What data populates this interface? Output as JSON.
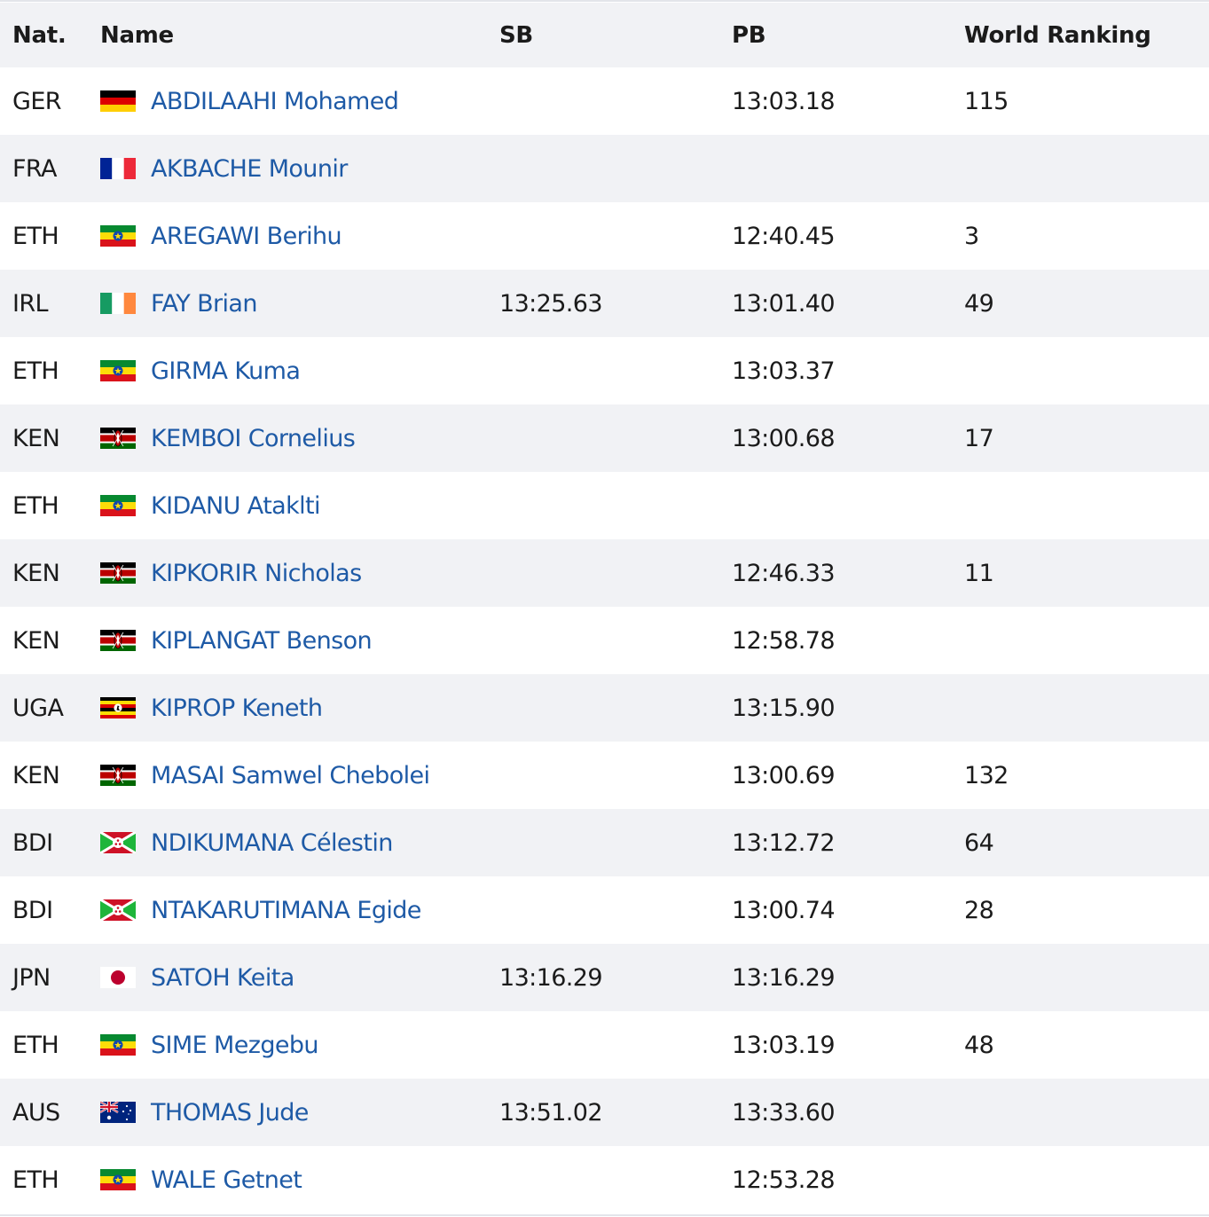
{
  "columns": {
    "nat": "Nat.",
    "name": "Name",
    "sb": "SB",
    "pb": "PB",
    "rank": "World Ranking"
  },
  "rows": [
    {
      "nat": "GER",
      "flag": "germany-flag-icon",
      "name": "ABDILAAHI Mohamed",
      "sb": "",
      "pb": "13:03.18",
      "rank": "115"
    },
    {
      "nat": "FRA",
      "flag": "france-flag-icon",
      "name": "AKBACHE Mounir",
      "sb": "",
      "pb": "",
      "rank": ""
    },
    {
      "nat": "ETH",
      "flag": "ethiopia-flag-icon",
      "name": "AREGAWI Berihu",
      "sb": "",
      "pb": "12:40.45",
      "rank": "3"
    },
    {
      "nat": "IRL",
      "flag": "ireland-flag-icon",
      "name": "FAY Brian",
      "sb": "13:25.63",
      "pb": "13:01.40",
      "rank": "49"
    },
    {
      "nat": "ETH",
      "flag": "ethiopia-flag-icon",
      "name": "GIRMA Kuma",
      "sb": "",
      "pb": "13:03.37",
      "rank": ""
    },
    {
      "nat": "KEN",
      "flag": "kenya-flag-icon",
      "name": "KEMBOI Cornelius",
      "sb": "",
      "pb": "13:00.68",
      "rank": "17"
    },
    {
      "nat": "ETH",
      "flag": "ethiopia-flag-icon",
      "name": "KIDANU Ataklti",
      "sb": "",
      "pb": "",
      "rank": ""
    },
    {
      "nat": "KEN",
      "flag": "kenya-flag-icon",
      "name": "KIPKORIR Nicholas",
      "sb": "",
      "pb": "12:46.33",
      "rank": "11"
    },
    {
      "nat": "KEN",
      "flag": "kenya-flag-icon",
      "name": "KIPLANGAT Benson",
      "sb": "",
      "pb": "12:58.78",
      "rank": ""
    },
    {
      "nat": "UGA",
      "flag": "uganda-flag-icon",
      "name": "KIPROP Keneth",
      "sb": "",
      "pb": "13:15.90",
      "rank": ""
    },
    {
      "nat": "KEN",
      "flag": "kenya-flag-icon",
      "name": "MASAI Samwel Chebolei",
      "sb": "",
      "pb": "13:00.69",
      "rank": "132"
    },
    {
      "nat": "BDI",
      "flag": "burundi-flag-icon",
      "name": "NDIKUMANA Célestin",
      "sb": "",
      "pb": "13:12.72",
      "rank": "64"
    },
    {
      "nat": "BDI",
      "flag": "burundi-flag-icon",
      "name": "NTAKARUTIMANA Egide",
      "sb": "",
      "pb": "13:00.74",
      "rank": "28"
    },
    {
      "nat": "JPN",
      "flag": "japan-flag-icon",
      "name": "SATOH Keita",
      "sb": "13:16.29",
      "pb": "13:16.29",
      "rank": ""
    },
    {
      "nat": "ETH",
      "flag": "ethiopia-flag-icon",
      "name": "SIME Mezgebu",
      "sb": "",
      "pb": "13:03.19",
      "rank": "48"
    },
    {
      "nat": "AUS",
      "flag": "australia-flag-icon",
      "name": "THOMAS Jude",
      "sb": "13:51.02",
      "pb": "13:33.60",
      "rank": ""
    },
    {
      "nat": "ETH",
      "flag": "ethiopia-flag-icon",
      "name": "WALE Getnet",
      "sb": "",
      "pb": "12:53.28",
      "rank": ""
    }
  ],
  "colors": {
    "link": "#1e5aa6",
    "row_shade": "#f1f2f5",
    "text": "#1b1b1b"
  }
}
